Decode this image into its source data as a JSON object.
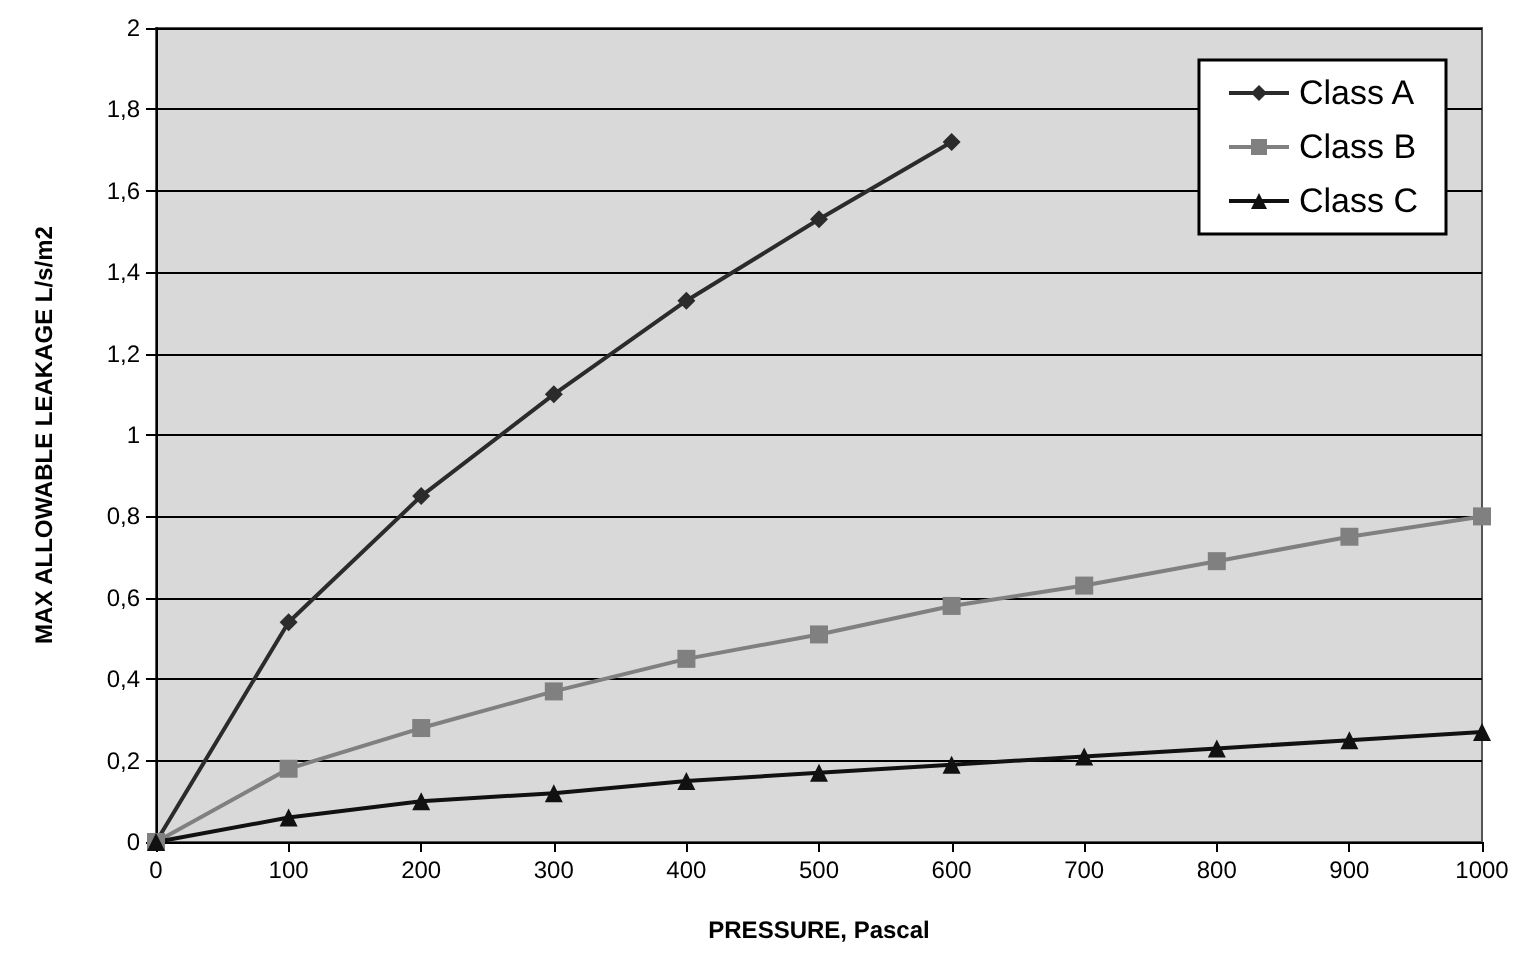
{
  "chart_data": {
    "type": "line",
    "xlabel": "PRESSURE, Pascal",
    "ylabel": "MAX ALLOWABLE LEAKAGE L/s/m2",
    "x": [
      0,
      100,
      200,
      300,
      400,
      500,
      600,
      700,
      800,
      900,
      1000
    ],
    "xlim": [
      0,
      1000
    ],
    "xticks": [
      0,
      100,
      200,
      300,
      400,
      500,
      600,
      700,
      800,
      900,
      1000
    ],
    "ylim": [
      0,
      2
    ],
    "yticks": [
      0,
      {
        "value": 0.2,
        "label": "0,2"
      },
      {
        "value": 0.4,
        "label": "0,4"
      },
      {
        "value": 0.6,
        "label": "0,6"
      },
      {
        "value": 0.8,
        "label": "0,8"
      },
      1,
      {
        "value": 1.2,
        "label": "1,2"
      },
      {
        "value": 1.4,
        "label": "1,4"
      },
      {
        "value": 1.6,
        "label": "1,6"
      },
      {
        "value": 1.8,
        "label": "1,8"
      },
      2
    ],
    "grid": "y",
    "legend": "top right",
    "line_style": "solid",
    "series": [
      {
        "name": "Class A",
        "color": "#2b2b2b",
        "marker": "diamond",
        "values": [
          0,
          0.54,
          0.85,
          1.1,
          1.33,
          1.53,
          1.72,
          null,
          null,
          null,
          null
        ]
      },
      {
        "name": "Class B",
        "color": "#808080",
        "marker": "square",
        "values": [
          0,
          0.18,
          0.28,
          0.37,
          0.45,
          0.51,
          0.58,
          0.63,
          0.69,
          0.75,
          0.8
        ]
      },
      {
        "name": "Class C",
        "color": "#111111",
        "marker": "triangle",
        "values": [
          0,
          0.06,
          0.1,
          0.12,
          0.15,
          0.17,
          0.19,
          0.21,
          0.23,
          0.25,
          0.27
        ]
      }
    ]
  }
}
